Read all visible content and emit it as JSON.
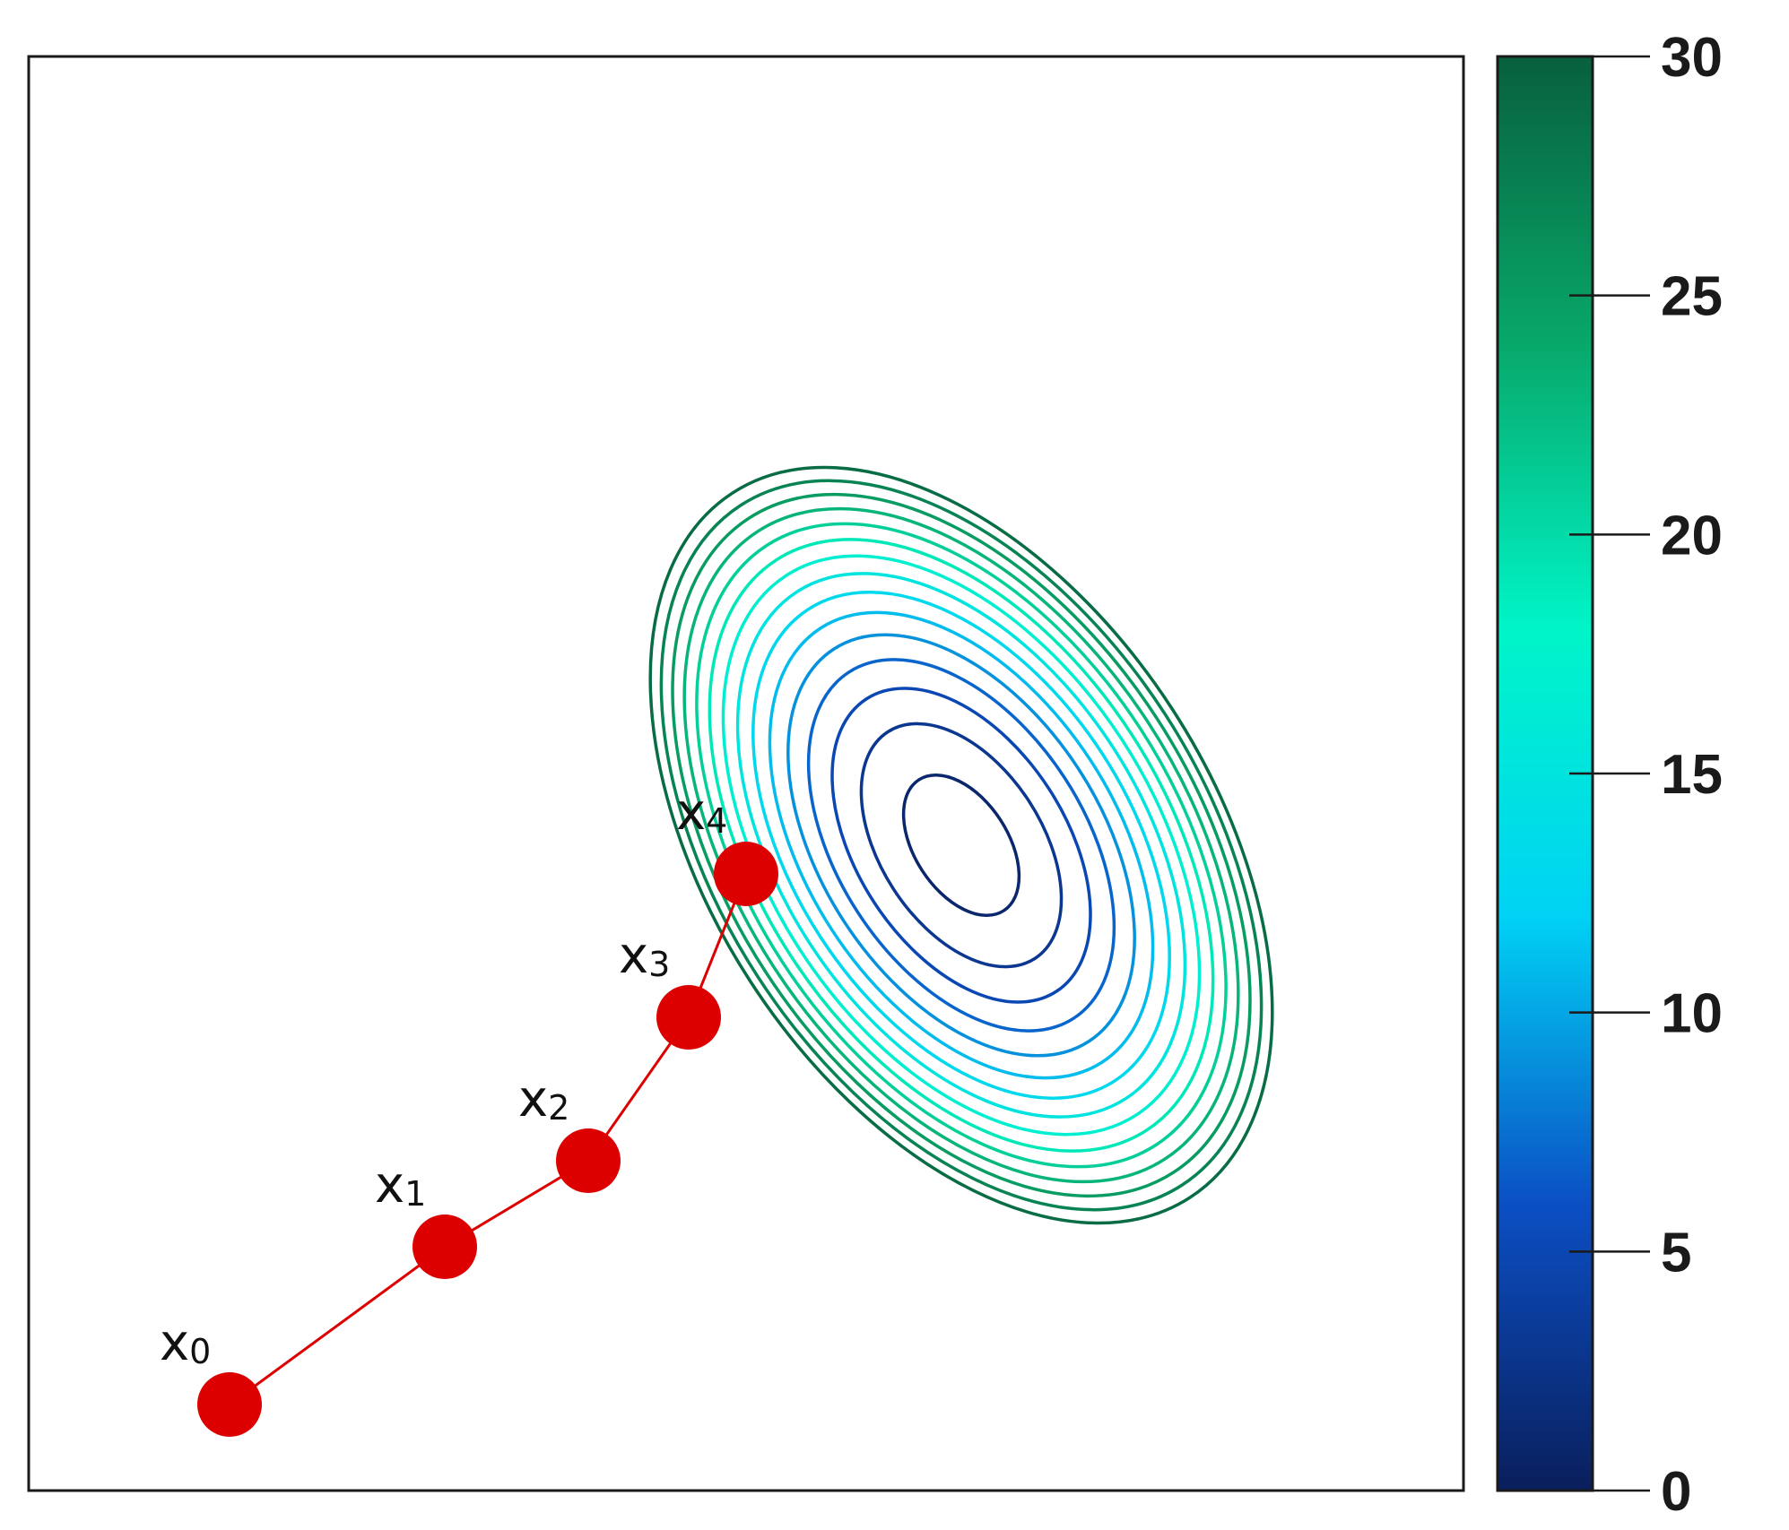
{
  "chart_data": {
    "type": "contour",
    "title": "",
    "xlabel": "",
    "ylabel": "",
    "center": [
      0.65,
      0.45
    ],
    "contour_levels": [
      1,
      3,
      5,
      7,
      9,
      11,
      13,
      15,
      17,
      19,
      21,
      23,
      25,
      27,
      29
    ],
    "colorbar": {
      "min": 0,
      "max": 30,
      "ticks": [
        0,
        5,
        10,
        15,
        20,
        25,
        30
      ],
      "tick_labels": [
        "0",
        "5",
        "10",
        "15",
        "20",
        "25",
        "30"
      ],
      "colors": [
        "#0a1f5c",
        "#0b4fc4",
        "#00d2f5",
        "#00f5c8",
        "#08a86a",
        "#08603d"
      ]
    },
    "path": {
      "color": "#dd0000",
      "points": [
        {
          "label": "x",
          "sub": "0",
          "x": 0.14,
          "y": 0.06
        },
        {
          "label": "x",
          "sub": "1",
          "x": 0.29,
          "y": 0.17
        },
        {
          "label": "x",
          "sub": "2",
          "x": 0.39,
          "y": 0.23
        },
        {
          "label": "x",
          "sub": "3",
          "x": 0.46,
          "y": 0.33
        },
        {
          "label": "x",
          "sub": "4",
          "x": 0.5,
          "y": 0.43
        }
      ]
    }
  }
}
